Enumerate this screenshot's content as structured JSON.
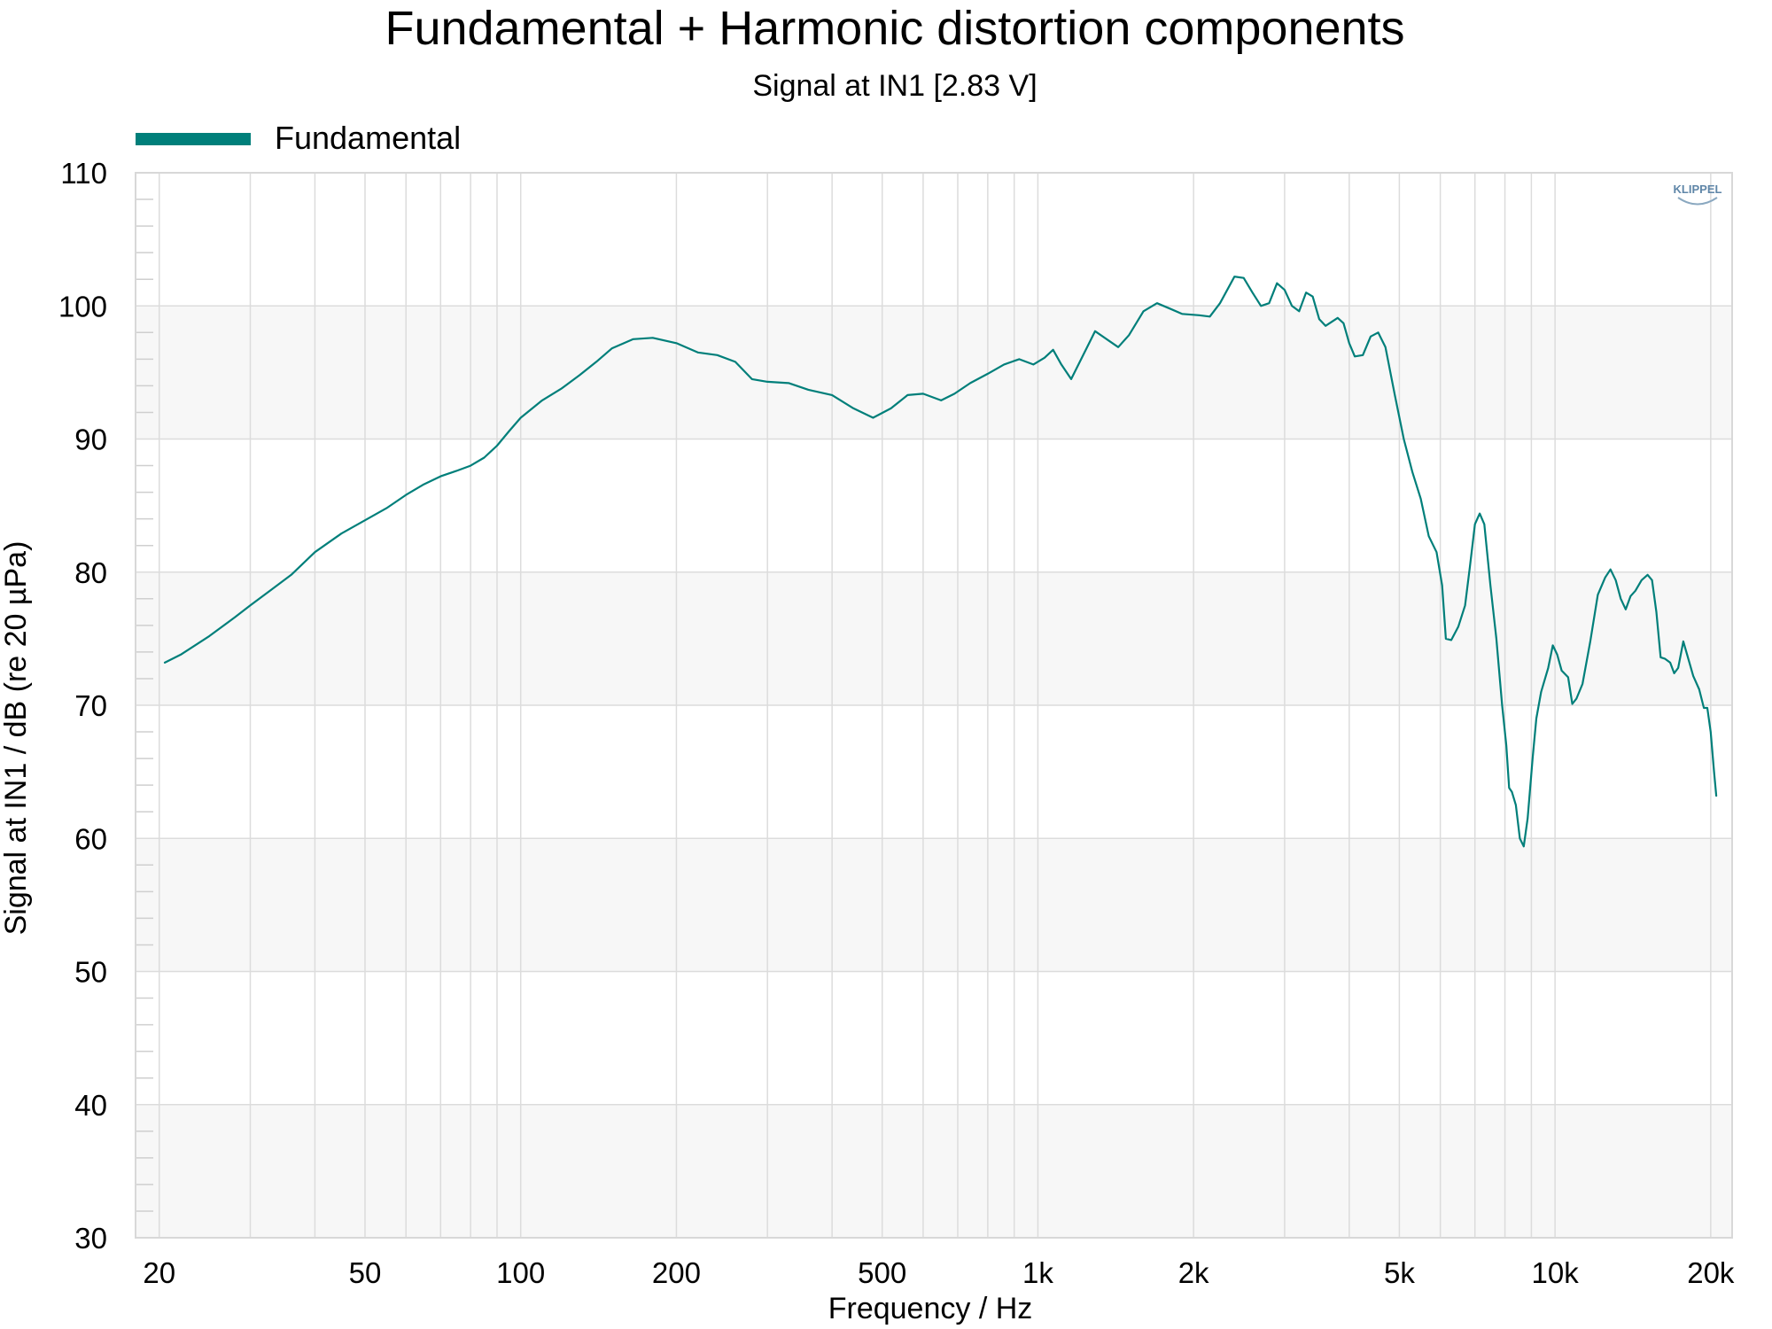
{
  "chart_data": {
    "type": "line",
    "title": "Fundamental + Harmonic distortion components",
    "subtitle": "Signal at IN1 [2.83 V]",
    "xlabel": "Frequency / Hz",
    "ylabel": "Signal at IN1 / dB (re 20 µPa)",
    "x_scale": "log",
    "xlim": [
      18,
      22000
    ],
    "ylim": [
      30,
      110
    ],
    "x_ticks": [
      {
        "value": 20,
        "label": "20"
      },
      {
        "value": 50,
        "label": "50"
      },
      {
        "value": 100,
        "label": "100"
      },
      {
        "value": 200,
        "label": "200"
      },
      {
        "value": 500,
        "label": "500"
      },
      {
        "value": 1000,
        "label": "1k"
      },
      {
        "value": 2000,
        "label": "2k"
      },
      {
        "value": 5000,
        "label": "5k"
      },
      {
        "value": 10000,
        "label": "10k"
      },
      {
        "value": 20000,
        "label": "20k"
      }
    ],
    "y_ticks": [
      30,
      40,
      50,
      60,
      70,
      80,
      90,
      100,
      110
    ],
    "grid": true,
    "alternating_bands": true,
    "legend_position": "top-left",
    "series": [
      {
        "name": "Fundamental",
        "color": "#007f7a",
        "points": [
          [
            20.5,
            73.2
          ],
          [
            22,
            73.8
          ],
          [
            25,
            75.2
          ],
          [
            28,
            76.6
          ],
          [
            30,
            77.5
          ],
          [
            33,
            78.7
          ],
          [
            36,
            79.8
          ],
          [
            40,
            81.5
          ],
          [
            45,
            82.9
          ],
          [
            50,
            83.9
          ],
          [
            55,
            84.8
          ],
          [
            60,
            85.8
          ],
          [
            65,
            86.6
          ],
          [
            70,
            87.2
          ],
          [
            75,
            87.6
          ],
          [
            80,
            88.0
          ],
          [
            85,
            88.6
          ],
          [
            90,
            89.5
          ],
          [
            95,
            90.6
          ],
          [
            100,
            91.6
          ],
          [
            110,
            92.9
          ],
          [
            120,
            93.8
          ],
          [
            130,
            94.8
          ],
          [
            140,
            95.8
          ],
          [
            150,
            96.8
          ],
          [
            165,
            97.5
          ],
          [
            180,
            97.6
          ],
          [
            200,
            97.2
          ],
          [
            220,
            96.5
          ],
          [
            240,
            96.3
          ],
          [
            260,
            95.8
          ],
          [
            280,
            94.5
          ],
          [
            300,
            94.3
          ],
          [
            330,
            94.2
          ],
          [
            360,
            93.7
          ],
          [
            400,
            93.3
          ],
          [
            440,
            92.3
          ],
          [
            480,
            91.6
          ],
          [
            520,
            92.3
          ],
          [
            560,
            93.3
          ],
          [
            600,
            93.4
          ],
          [
            650,
            92.9
          ],
          [
            690,
            93.4
          ],
          [
            740,
            94.2
          ],
          [
            800,
            94.9
          ],
          [
            860,
            95.6
          ],
          [
            920,
            96.0
          ],
          [
            980,
            95.6
          ],
          [
            1030,
            96.1
          ],
          [
            1070,
            96.7
          ],
          [
            1110,
            95.6
          ],
          [
            1160,
            94.5
          ],
          [
            1220,
            96.2
          ],
          [
            1290,
            98.1
          ],
          [
            1370,
            97.4
          ],
          [
            1430,
            96.9
          ],
          [
            1500,
            97.8
          ],
          [
            1600,
            99.6
          ],
          [
            1700,
            100.2
          ],
          [
            1800,
            99.8
          ],
          [
            1900,
            99.4
          ],
          [
            2050,
            99.3
          ],
          [
            2150,
            99.2
          ],
          [
            2250,
            100.2
          ],
          [
            2400,
            102.2
          ],
          [
            2500,
            102.1
          ],
          [
            2600,
            101.0
          ],
          [
            2700,
            100.0
          ],
          [
            2800,
            100.2
          ],
          [
            2900,
            101.7
          ],
          [
            3000,
            101.2
          ],
          [
            3100,
            100.0
          ],
          [
            3200,
            99.6
          ],
          [
            3300,
            101.0
          ],
          [
            3400,
            100.7
          ],
          [
            3500,
            99.0
          ],
          [
            3600,
            98.5
          ],
          [
            3800,
            99.1
          ],
          [
            3900,
            98.7
          ],
          [
            4000,
            97.2
          ],
          [
            4100,
            96.2
          ],
          [
            4250,
            96.3
          ],
          [
            4400,
            97.7
          ],
          [
            4550,
            98.0
          ],
          [
            4700,
            96.9
          ],
          [
            4900,
            93.3
          ],
          [
            5100,
            90.0
          ],
          [
            5300,
            87.5
          ],
          [
            5500,
            85.5
          ],
          [
            5700,
            82.7
          ],
          [
            5900,
            81.5
          ],
          [
            6050,
            79.0
          ],
          [
            6150,
            75.0
          ],
          [
            6300,
            74.9
          ],
          [
            6500,
            75.9
          ],
          [
            6700,
            77.5
          ],
          [
            6850,
            80.5
          ],
          [
            7000,
            83.6
          ],
          [
            7150,
            84.4
          ],
          [
            7300,
            83.6
          ],
          [
            7500,
            79.0
          ],
          [
            7700,
            75.0
          ],
          [
            7900,
            70.0
          ],
          [
            8050,
            67.0
          ],
          [
            8150,
            63.8
          ],
          [
            8250,
            63.5
          ],
          [
            8400,
            62.5
          ],
          [
            8550,
            60.0
          ],
          [
            8700,
            59.4
          ],
          [
            8850,
            61.5
          ],
          [
            9050,
            66.0
          ],
          [
            9200,
            69.0
          ],
          [
            9400,
            71.0
          ],
          [
            9700,
            72.8
          ],
          [
            9900,
            74.5
          ],
          [
            10100,
            73.8
          ],
          [
            10300,
            72.6
          ],
          [
            10600,
            72.1
          ],
          [
            10800,
            70.1
          ],
          [
            11000,
            70.5
          ],
          [
            11300,
            71.6
          ],
          [
            11700,
            74.8
          ],
          [
            12100,
            78.3
          ],
          [
            12500,
            79.6
          ],
          [
            12800,
            80.2
          ],
          [
            13100,
            79.4
          ],
          [
            13400,
            78.0
          ],
          [
            13700,
            77.2
          ],
          [
            14000,
            78.2
          ],
          [
            14300,
            78.6
          ],
          [
            14700,
            79.4
          ],
          [
            15100,
            79.8
          ],
          [
            15400,
            79.4
          ],
          [
            15700,
            77.0
          ],
          [
            16000,
            73.6
          ],
          [
            16300,
            73.5
          ],
          [
            16700,
            73.2
          ],
          [
            17000,
            72.4
          ],
          [
            17300,
            72.8
          ],
          [
            17700,
            74.8
          ],
          [
            18100,
            73.5
          ],
          [
            18500,
            72.2
          ],
          [
            19000,
            71.2
          ],
          [
            19400,
            69.8
          ],
          [
            19700,
            69.8
          ],
          [
            20000,
            68.0
          ],
          [
            20300,
            65.0
          ],
          [
            20500,
            63.2
          ]
        ]
      }
    ]
  },
  "legend": {
    "items": [
      {
        "label": "Fundamental",
        "color": "#007f7a"
      }
    ]
  },
  "watermark": {
    "text": "KLIPPEL"
  }
}
